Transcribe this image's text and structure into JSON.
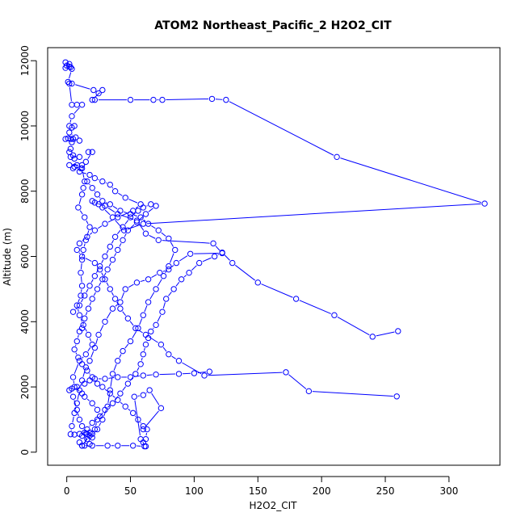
{
  "chart_data": {
    "type": "line",
    "title": "ATOM2 Northeast_Pacific_2 H2O2_CIT",
    "xlabel": "H2O2_CIT",
    "ylabel": "Altitude (m)",
    "xlim": [
      -15,
      340
    ],
    "ylim": [
      -400,
      12400
    ],
    "xticks": [
      0,
      50,
      100,
      150,
      200,
      250,
      300
    ],
    "yticks": [
      0,
      2000,
      4000,
      6000,
      8000,
      10000,
      12000
    ],
    "markers": "open-circle",
    "grid": false,
    "legend": "none",
    "series": [
      {
        "color": "#0000ff",
        "points": [
          [
            -1,
            11950
          ],
          [
            2,
            11900
          ],
          [
            0,
            11850
          ],
          [
            3,
            11800
          ],
          [
            -1,
            11780
          ],
          [
            2,
            11820
          ],
          [
            4,
            11750
          ],
          [
            1,
            11350
          ],
          [
            4,
            11300
          ],
          [
            21,
            11100
          ],
          [
            25,
            11000
          ],
          [
            28,
            11100
          ],
          [
            20,
            10800
          ],
          [
            22,
            10800
          ],
          [
            50,
            10800
          ],
          [
            68,
            10800
          ],
          [
            75,
            10800
          ],
          [
            114,
            10830
          ],
          [
            125,
            10800
          ],
          [
            212,
            9050
          ],
          [
            328,
            7620
          ],
          [
            60,
            7000
          ],
          [
            45,
            6800
          ],
          [
            36,
            7200
          ],
          [
            28,
            7500
          ],
          [
            25,
            7600
          ],
          [
            20,
            7700
          ],
          [
            22,
            7650
          ],
          [
            30,
            7550
          ],
          [
            40,
            7300
          ],
          [
            55,
            7100
          ],
          [
            62,
            6700
          ],
          [
            72,
            6500
          ],
          [
            115,
            6400
          ],
          [
            122,
            6100
          ],
          [
            97,
            6080
          ],
          [
            86,
            5800
          ],
          [
            80,
            5600
          ],
          [
            73,
            5500
          ],
          [
            64,
            5300
          ],
          [
            55,
            5200
          ],
          [
            46,
            5000
          ],
          [
            42,
            4600
          ],
          [
            36,
            4400
          ],
          [
            30,
            4000
          ],
          [
            25,
            3600
          ],
          [
            22,
            3200
          ],
          [
            18,
            2800
          ],
          [
            15,
            2600
          ],
          [
            12,
            2200
          ],
          [
            10,
            1900
          ],
          [
            8,
            1500
          ],
          [
            6,
            1200
          ],
          [
            4,
            800
          ],
          [
            3,
            550
          ],
          [
            6,
            540
          ],
          [
            10,
            560
          ],
          [
            15,
            570
          ],
          [
            20,
            560
          ],
          [
            18,
            500
          ],
          [
            12,
            200
          ],
          [
            20,
            200
          ],
          [
            32,
            200
          ],
          [
            40,
            200
          ],
          [
            52,
            200
          ],
          [
            61,
            180
          ],
          [
            62,
            180
          ],
          [
            58,
            400
          ],
          [
            53,
            1700
          ],
          [
            60,
            1750
          ],
          [
            65,
            1900
          ],
          [
            74,
            1350
          ],
          [
            60,
            700
          ]
        ]
      },
      {
        "color": "#0000ff",
        "points": [
          [
            2,
            11300
          ],
          [
            4,
            10650
          ],
          [
            8,
            10650
          ],
          [
            12,
            10650
          ],
          [
            4,
            10300
          ],
          [
            2,
            10000
          ],
          [
            6,
            10000
          ],
          [
            4,
            9950
          ],
          [
            2,
            9800
          ],
          [
            7,
            9650
          ],
          [
            -1,
            9600
          ],
          [
            1,
            9620
          ],
          [
            3,
            9600
          ],
          [
            5,
            9600
          ],
          [
            10,
            9550
          ],
          [
            4,
            9500
          ],
          [
            3,
            9300
          ],
          [
            2,
            9200
          ],
          [
            5,
            9100
          ],
          [
            3,
            9050
          ],
          [
            10,
            9050
          ],
          [
            6,
            9000
          ],
          [
            8,
            8800
          ],
          [
            12,
            8800
          ],
          [
            2,
            8800
          ],
          [
            6,
            8750
          ],
          [
            11,
            8700
          ],
          [
            5,
            8700
          ],
          [
            10,
            8600
          ],
          [
            18,
            8500
          ],
          [
            22,
            8400
          ],
          [
            28,
            8300
          ],
          [
            34,
            8200
          ],
          [
            38,
            8000
          ],
          [
            46,
            7800
          ],
          [
            58,
            7600
          ],
          [
            52,
            7400
          ],
          [
            40,
            7200
          ],
          [
            30,
            7000
          ],
          [
            22,
            6800
          ],
          [
            16,
            6600
          ],
          [
            10,
            6400
          ],
          [
            8,
            6200
          ],
          [
            12,
            6000
          ],
          [
            22,
            5800
          ],
          [
            26,
            5600
          ],
          [
            30,
            5300
          ],
          [
            34,
            5000
          ],
          [
            38,
            4700
          ],
          [
            42,
            4400
          ],
          [
            48,
            4100
          ],
          [
            54,
            3800
          ],
          [
            62,
            3600
          ],
          [
            74,
            3300
          ],
          [
            80,
            3000
          ],
          [
            88,
            2800
          ],
          [
            108,
            2350
          ],
          [
            172,
            2450
          ],
          [
            190,
            1870
          ],
          [
            259,
            1710
          ]
        ]
      },
      {
        "color": "#0000ff",
        "points": [
          [
            17,
            9200
          ],
          [
            20,
            9200
          ],
          [
            15,
            8900
          ],
          [
            12,
            8700
          ],
          [
            14,
            8300
          ],
          [
            13,
            8100
          ],
          [
            12,
            7900
          ],
          [
            9,
            7500
          ],
          [
            14,
            7200
          ],
          [
            18,
            6900
          ],
          [
            15,
            6500
          ],
          [
            13,
            6200
          ],
          [
            12,
            5900
          ],
          [
            11,
            5500
          ],
          [
            12,
            5100
          ],
          [
            11,
            4800
          ],
          [
            8,
            4500
          ],
          [
            10,
            4200
          ],
          [
            13,
            3900
          ],
          [
            17,
            3600
          ],
          [
            20,
            3300
          ],
          [
            15,
            3000
          ],
          [
            10,
            2800
          ],
          [
            5,
            2300
          ],
          [
            6,
            2000
          ],
          [
            12,
            1800
          ],
          [
            14,
            1700
          ],
          [
            20,
            1500
          ],
          [
            24,
            1300
          ],
          [
            26,
            1100
          ],
          [
            20,
            900
          ],
          [
            16,
            700
          ],
          [
            12,
            500
          ],
          [
            10,
            300
          ],
          [
            12,
            200
          ],
          [
            16,
            400
          ],
          [
            18,
            600
          ],
          [
            24,
            700
          ],
          [
            28,
            1000
          ],
          [
            32,
            1400
          ],
          [
            34,
            1900
          ],
          [
            36,
            2400
          ],
          [
            40,
            2800
          ],
          [
            44,
            3100
          ],
          [
            50,
            3400
          ],
          [
            56,
            3800
          ],
          [
            60,
            4200
          ],
          [
            64,
            4600
          ],
          [
            70,
            5000
          ],
          [
            76,
            5400
          ],
          [
            80,
            5700
          ],
          [
            85,
            6200
          ],
          [
            80,
            6550
          ],
          [
            72,
            6800
          ],
          [
            64,
            7000
          ],
          [
            58,
            7200
          ],
          [
            50,
            7300
          ],
          [
            42,
            7400
          ],
          [
            34,
            7600
          ],
          [
            28,
            7700
          ],
          [
            24,
            7900
          ],
          [
            20,
            8100
          ],
          [
            16,
            8300
          ]
        ]
      },
      {
        "color": "#0000ff",
        "points": [
          [
            112,
            2470
          ],
          [
            100,
            2420
          ],
          [
            88,
            2400
          ],
          [
            70,
            2380
          ],
          [
            60,
            2350
          ],
          [
            50,
            2300
          ],
          [
            40,
            2300
          ],
          [
            30,
            2250
          ],
          [
            22,
            2250
          ],
          [
            18,
            2200
          ],
          [
            14,
            2100
          ],
          [
            8,
            2000
          ],
          [
            4,
            1950
          ],
          [
            2,
            1900
          ],
          [
            5,
            1700
          ],
          [
            8,
            1300
          ],
          [
            10,
            1000
          ],
          [
            12,
            800
          ],
          [
            14,
            600
          ],
          [
            16,
            550
          ],
          [
            14,
            200
          ],
          [
            18,
            250
          ],
          [
            20,
            450
          ],
          [
            22,
            700
          ],
          [
            24,
            1000
          ],
          [
            30,
            1300
          ],
          [
            36,
            1500
          ],
          [
            42,
            1800
          ],
          [
            48,
            2100
          ],
          [
            54,
            2400
          ],
          [
            58,
            2700
          ],
          [
            60,
            3000
          ],
          [
            62,
            3300
          ],
          [
            64,
            3500
          ],
          [
            66,
            3700
          ],
          [
            70,
            3900
          ],
          [
            75,
            4300
          ],
          [
            78,
            4700
          ],
          [
            84,
            5000
          ],
          [
            90,
            5300
          ],
          [
            96,
            5500
          ],
          [
            104,
            5800
          ],
          [
            116,
            6000
          ],
          [
            122,
            6120
          ],
          [
            130,
            5800
          ],
          [
            150,
            5200
          ],
          [
            180,
            4700
          ],
          [
            210,
            4200
          ],
          [
            240,
            3540
          ],
          [
            260,
            3710
          ]
        ]
      },
      {
        "color": "#0000ff",
        "points": [
          [
            5,
            4300
          ],
          [
            10,
            4500
          ],
          [
            14,
            4800
          ],
          [
            18,
            5100
          ],
          [
            22,
            5400
          ],
          [
            26,
            5700
          ],
          [
            30,
            6000
          ],
          [
            34,
            6300
          ],
          [
            38,
            6600
          ],
          [
            44,
            6900
          ],
          [
            50,
            7200
          ],
          [
            56,
            7400
          ],
          [
            60,
            7500
          ],
          [
            66,
            7600
          ],
          [
            70,
            7550
          ],
          [
            62,
            7300
          ],
          [
            55,
            7050
          ],
          [
            48,
            6800
          ],
          [
            44,
            6500
          ],
          [
            40,
            6200
          ],
          [
            36,
            5900
          ],
          [
            32,
            5600
          ],
          [
            28,
            5300
          ],
          [
            24,
            5000
          ],
          [
            20,
            4700
          ],
          [
            17,
            4400
          ],
          [
            14,
            4100
          ],
          [
            12,
            3800
          ],
          [
            10,
            3700
          ],
          [
            8,
            3400
          ],
          [
            6,
            3150
          ],
          [
            9,
            2900
          ],
          [
            12,
            2700
          ],
          [
            16,
            2500
          ],
          [
            20,
            2300
          ],
          [
            24,
            2100
          ],
          [
            28,
            2000
          ],
          [
            34,
            1800
          ],
          [
            40,
            1600
          ],
          [
            46,
            1400
          ],
          [
            52,
            1200
          ],
          [
            56,
            1000
          ],
          [
            60,
            800
          ],
          [
            63,
            700
          ],
          [
            62,
            400
          ],
          [
            60,
            300
          ]
        ]
      }
    ]
  }
}
